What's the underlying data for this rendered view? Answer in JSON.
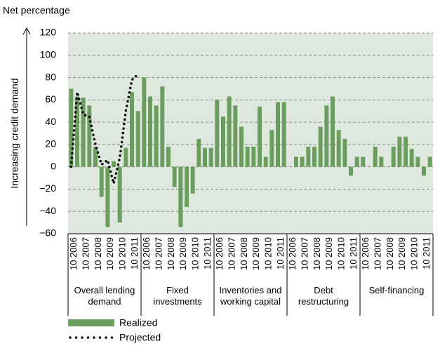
{
  "chart_data": {
    "type": "bar",
    "title": "Net percentage",
    "y_label": "Increasing credit demand",
    "groups": [
      "Overall lending demand",
      "Fixed investments",
      "Inventories and working capital",
      "Debt restructuring",
      "Self-financing"
    ],
    "periods": [
      "10 2006",
      "10 2007",
      "10 2008",
      "10 2009",
      "10 2010",
      "10 2011"
    ],
    "ylim": [
      -60,
      120
    ],
    "yticks": [
      {
        "value": -60,
        "label": "−60"
      },
      {
        "value": -40,
        "label": "−40"
      },
      {
        "value": -20,
        "label": "−20"
      },
      0,
      20,
      40,
      60,
      80,
      100,
      120
    ],
    "grid": true,
    "series": [
      {
        "name": "Realized",
        "color": "#6b9e5e",
        "values": [
          70,
          63,
          62,
          55,
          18,
          -27,
          -54,
          5,
          -50,
          17,
          67,
          50,
          80,
          63,
          55,
          72,
          18,
          -18,
          -54,
          -36,
          -24,
          25,
          17,
          17,
          60,
          45,
          63,
          55,
          36,
          18,
          18,
          54,
          9,
          33,
          58,
          58,
          null,
          9,
          9,
          18,
          18,
          36,
          55,
          63,
          33,
          25,
          -8,
          9,
          9,
          null,
          18,
          9,
          null,
          18,
          27,
          27,
          16,
          9,
          -8,
          9
        ]
      },
      {
        "name": "Projected",
        "color": "#000000",
        "values": [
          0,
          67,
          47,
          45,
          20,
          2,
          6,
          -15,
          8,
          50,
          78,
          83,
          null,
          null,
          null,
          null,
          null,
          null,
          null,
          null,
          null,
          null,
          null,
          null,
          null,
          null,
          null,
          null,
          null,
          null,
          null,
          null,
          null,
          null,
          null,
          null,
          null,
          null,
          null,
          null,
          null,
          null,
          null,
          null,
          null,
          null,
          null,
          null,
          null,
          null,
          null,
          null,
          null,
          null,
          null,
          null,
          null,
          null,
          null,
          null
        ]
      }
    ]
  }
}
